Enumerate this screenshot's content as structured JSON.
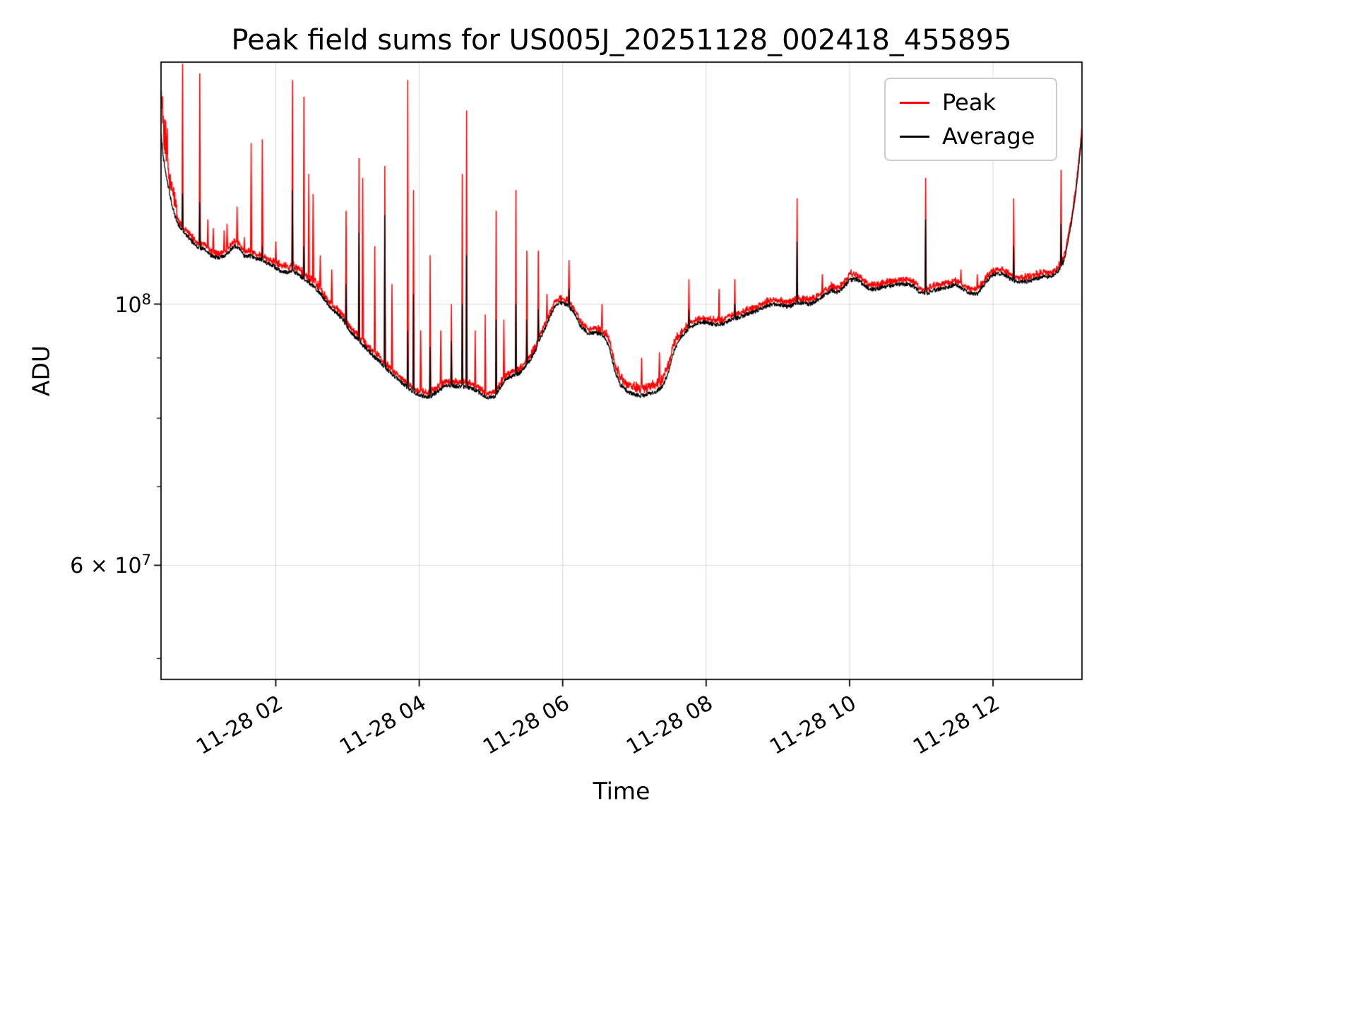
{
  "chart_data": {
    "type": "line",
    "title": "Peak field sums for US005J_20251128_002418_455895",
    "xlabel": "Time",
    "ylabel": "ADU",
    "yscale": "log",
    "grid": true,
    "ylim": [
      48000000.0,
      160500000.0
    ],
    "xlim_hours": [
      0.4,
      13.24
    ],
    "x_ticks": [
      {
        "hour": 2,
        "label": "11-28 02"
      },
      {
        "hour": 4,
        "label": "11-28 04"
      },
      {
        "hour": 6,
        "label": "11-28 06"
      },
      {
        "hour": 8,
        "label": "11-28 08"
      },
      {
        "hour": 10,
        "label": "11-28 10"
      },
      {
        "hour": 12,
        "label": "11-28 12"
      }
    ],
    "y_major_ticks": [
      {
        "value": 100000000.0,
        "mantissa": "10",
        "exponent": "8"
      },
      {
        "value": 60000000.0,
        "mantissa": "6 × 10",
        "exponent": "7"
      }
    ],
    "y_minor_ticks": [
      50000000.0,
      70000000.0,
      80000000.0,
      90000000.0
    ],
    "x_minor_ticks_hours": [],
    "legend": {
      "position": "upper right"
    },
    "series": [
      {
        "name": "Peak",
        "color": "#ff0000"
      },
      {
        "name": "Average",
        "color": "#000000"
      }
    ],
    "average_base_points": [
      [
        0.4,
        140000000.0
      ],
      [
        0.43,
        133500000.0
      ],
      [
        0.46,
        130000000.0
      ],
      [
        0.5,
        126000000.0
      ],
      [
        0.55,
        121500000.0
      ],
      [
        0.6,
        118500000.0
      ],
      [
        0.65,
        116500000.0
      ],
      [
        0.7,
        115500000.0
      ],
      [
        0.8,
        113500000.0
      ],
      [
        0.9,
        112000000.0
      ],
      [
        1.0,
        111300000.0
      ],
      [
        1.1,
        110000000.0
      ],
      [
        1.2,
        109400000.0
      ],
      [
        1.3,
        110000000.0
      ],
      [
        1.4,
        111800000.0
      ],
      [
        1.48,
        111700000.0
      ],
      [
        1.55,
        110000000.0
      ],
      [
        1.65,
        109700000.0
      ],
      [
        1.75,
        109300000.0
      ],
      [
        1.85,
        108600000.0
      ],
      [
        1.95,
        108000000.0
      ],
      [
        2.05,
        106800000.0
      ],
      [
        2.15,
        106400000.0
      ],
      [
        2.25,
        106600000.0
      ],
      [
        2.35,
        105500000.0
      ],
      [
        2.45,
        104300000.0
      ],
      [
        2.55,
        103200000.0
      ],
      [
        2.65,
        101500000.0
      ],
      [
        2.75,
        99500000.0
      ],
      [
        2.85,
        98200000.0
      ],
      [
        2.95,
        96800000.0
      ],
      [
        3.05,
        94500000.0
      ],
      [
        3.15,
        93200000.0
      ],
      [
        3.25,
        91800000.0
      ],
      [
        3.35,
        90500000.0
      ],
      [
        3.45,
        89400000.0
      ],
      [
        3.55,
        88000000.0
      ],
      [
        3.65,
        86900000.0
      ],
      [
        3.75,
        85800000.0
      ],
      [
        3.85,
        84800000.0
      ],
      [
        3.95,
        84000000.0
      ],
      [
        4.05,
        83500000.0
      ],
      [
        4.15,
        83400000.0
      ],
      [
        4.25,
        84300000.0
      ],
      [
        4.35,
        85100000.0
      ],
      [
        4.45,
        85300000.0
      ],
      [
        4.55,
        85100000.0
      ],
      [
        4.65,
        85000000.0
      ],
      [
        4.75,
        84800000.0
      ],
      [
        4.85,
        84000000.0
      ],
      [
        4.95,
        83300000.0
      ],
      [
        5.05,
        83400000.0
      ],
      [
        5.12,
        84800000.0
      ],
      [
        5.2,
        86200000.0
      ],
      [
        5.3,
        86900000.0
      ],
      [
        5.4,
        87400000.0
      ],
      [
        5.5,
        88800000.0
      ],
      [
        5.6,
        90800000.0
      ],
      [
        5.7,
        93800000.0
      ],
      [
        5.8,
        96800000.0
      ],
      [
        5.88,
        99300000.0
      ],
      [
        5.95,
        100300000.0
      ],
      [
        6.05,
        100000000.0
      ],
      [
        6.15,
        98500000.0
      ],
      [
        6.25,
        95800000.0
      ],
      [
        6.35,
        94500000.0
      ],
      [
        6.45,
        94600000.0
      ],
      [
        6.55,
        94300000.0
      ],
      [
        6.65,
        92000000.0
      ],
      [
        6.72,
        88000000.0
      ],
      [
        6.8,
        85500000.0
      ],
      [
        6.9,
        84300000.0
      ],
      [
        7.0,
        83800000.0
      ],
      [
        7.1,
        83600000.0
      ],
      [
        7.2,
        83900000.0
      ],
      [
        7.3,
        84300000.0
      ],
      [
        7.4,
        85200000.0
      ],
      [
        7.48,
        87800000.0
      ],
      [
        7.55,
        91200000.0
      ],
      [
        7.65,
        93800000.0
      ],
      [
        7.75,
        95200000.0
      ],
      [
        7.85,
        96200000.0
      ],
      [
        7.95,
        96600000.0
      ],
      [
        8.05,
        96300000.0
      ],
      [
        8.15,
        96000000.0
      ],
      [
        8.25,
        96300000.0
      ],
      [
        8.35,
        97000000.0
      ],
      [
        8.45,
        97400000.0
      ],
      [
        8.55,
        97900000.0
      ],
      [
        8.65,
        98400000.0
      ],
      [
        8.75,
        99000000.0
      ],
      [
        8.85,
        99600000.0
      ],
      [
        8.95,
        100000000.0
      ],
      [
        9.05,
        99800000.0
      ],
      [
        9.15,
        99500000.0
      ],
      [
        9.25,
        100000000.0
      ],
      [
        9.35,
        100300000.0
      ],
      [
        9.45,
        100000000.0
      ],
      [
        9.55,
        100800000.0
      ],
      [
        9.65,
        101800000.0
      ],
      [
        9.75,
        102800000.0
      ],
      [
        9.82,
        102300000.0
      ],
      [
        9.9,
        103000000.0
      ],
      [
        10.0,
        104800000.0
      ],
      [
        10.1,
        105000000.0
      ],
      [
        10.18,
        104000000.0
      ],
      [
        10.28,
        103000000.0
      ],
      [
        10.38,
        103000000.0
      ],
      [
        10.48,
        103500000.0
      ],
      [
        10.58,
        103500000.0
      ],
      [
        10.68,
        104000000.0
      ],
      [
        10.78,
        104000000.0
      ],
      [
        10.88,
        103700000.0
      ],
      [
        10.98,
        102300000.0
      ],
      [
        11.08,
        102200000.0
      ],
      [
        11.18,
        102800000.0
      ],
      [
        11.28,
        103000000.0
      ],
      [
        11.38,
        103400000.0
      ],
      [
        11.48,
        104000000.0
      ],
      [
        11.58,
        103000000.0
      ],
      [
        11.68,
        102200000.0
      ],
      [
        11.78,
        102000000.0
      ],
      [
        11.88,
        104000000.0
      ],
      [
        11.98,
        105800000.0
      ],
      [
        12.08,
        106200000.0
      ],
      [
        12.18,
        105800000.0
      ],
      [
        12.28,
        104600000.0
      ],
      [
        12.38,
        104500000.0
      ],
      [
        12.48,
        104500000.0
      ],
      [
        12.58,
        105000000.0
      ],
      [
        12.68,
        105500000.0
      ],
      [
        12.8,
        105500000.0
      ],
      [
        12.9,
        106500000.0
      ],
      [
        12.98,
        108500000.0
      ],
      [
        13.05,
        113000000.0
      ],
      [
        13.12,
        120000000.0
      ],
      [
        13.18,
        128000000.0
      ],
      [
        13.24,
        140000000.0
      ]
    ],
    "spikes": [
      [
        0.7,
        160000000.0,
        124000000.0
      ],
      [
        0.94,
        157000000.0,
        122000000.0
      ],
      [
        1.05,
        118000000.0,
        null
      ],
      [
        1.13,
        116000000.0,
        null
      ],
      [
        1.28,
        115500000.0,
        null
      ],
      [
        1.32,
        117000000.0,
        null
      ],
      [
        1.46,
        121000000.0,
        null
      ],
      [
        1.56,
        114000000.0,
        null
      ],
      [
        1.655,
        137000000.0,
        110000000.0
      ],
      [
        1.81,
        138000000.0,
        112000000.0
      ],
      [
        2.0,
        113000000.0,
        null
      ],
      [
        2.23,
        155000000.0,
        125000000.0
      ],
      [
        2.39,
        150000000.0,
        112000000.0
      ],
      [
        2.46,
        129000000.0,
        105000000.0
      ],
      [
        2.52,
        124000000.0,
        null
      ],
      [
        2.62,
        110000000.0,
        null
      ],
      [
        2.78,
        107000000.0,
        null
      ],
      [
        2.98,
        120000000.0,
        104000000.0
      ],
      [
        3.16,
        133000000.0,
        115000000.0
      ],
      [
        3.21,
        128000000.0,
        null
      ],
      [
        3.38,
        112000000.0,
        null
      ],
      [
        3.52,
        131000000.0,
        119000000.0
      ],
      [
        3.62,
        104000000.0,
        null
      ],
      [
        3.84,
        155000000.0,
        95000000.0
      ],
      [
        3.92,
        125000000.0,
        102000000.0
      ],
      [
        4.02,
        95000000.0,
        null
      ],
      [
        4.15,
        110000000.0,
        92000000.0
      ],
      [
        4.3,
        95000000.0,
        null
      ],
      [
        4.45,
        100000000.0,
        93000000.0
      ],
      [
        4.6,
        129000000.0,
        100000000.0
      ],
      [
        4.66,
        146000000.0,
        110000000.0
      ],
      [
        4.78,
        95000000.0,
        null
      ],
      [
        4.92,
        98000000.0,
        null
      ],
      [
        5.07,
        120000000.0,
        97000000.0
      ],
      [
        5.18,
        97000000.0,
        null
      ],
      [
        5.35,
        125000000.0,
        100000000.0
      ],
      [
        5.5,
        111000000.0,
        97000000.0
      ],
      [
        5.66,
        111000000.0,
        99000000.0
      ],
      [
        5.78,
        102000000.0,
        null
      ],
      [
        6.09,
        109000000.0,
        103000000.0
      ],
      [
        6.55,
        100000000.0,
        null
      ],
      [
        7.1,
        90000000.0,
        null
      ],
      [
        7.35,
        91000000.0,
        null
      ],
      [
        7.76,
        105000000.0,
        99000000.0
      ],
      [
        8.18,
        103000000.0,
        null
      ],
      [
        8.4,
        105000000.0,
        100000000.0
      ],
      [
        9.27,
        123000000.0,
        113000000.0
      ],
      [
        9.62,
        106000000.0,
        null
      ],
      [
        10.02,
        107000000.0,
        null
      ],
      [
        11.06,
        128000000.0,
        118000000.0
      ],
      [
        11.55,
        107000000.0,
        null
      ],
      [
        11.78,
        106000000.0,
        null
      ],
      [
        12.29,
        123000000.0,
        112000000.0
      ],
      [
        12.95,
        130000000.0,
        117000000.0
      ]
    ],
    "noise": {
      "seed": 42,
      "sample_dt_hours": 0.004,
      "avg_jitter": 0.0045,
      "peak_offset_regions": [
        {
          "from": 0.4,
          "to": 0.5,
          "base": 0.025,
          "rand": 0.095
        },
        {
          "from": 0.5,
          "to": 0.62,
          "base": 0.012,
          "rand": 0.035
        },
        {
          "from": 2.0,
          "to": 2.6,
          "base": 0.005,
          "rand": 0.012
        },
        {
          "from": 6.6,
          "to": 7.6,
          "base": 0.006,
          "rand": 0.016
        },
        {
          "from": -1,
          "to": 99,
          "base": 0.004,
          "rand": 0.009
        }
      ]
    },
    "colors": {
      "grid": "rgba(0,0,0,0.12)",
      "frame": "#000000",
      "background": "#ffffff"
    }
  }
}
